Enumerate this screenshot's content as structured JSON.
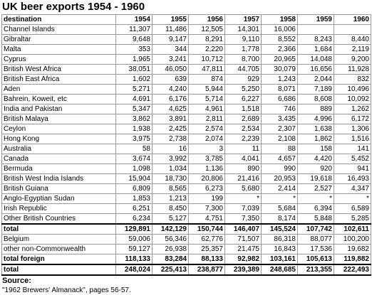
{
  "title": "UK beer exports 1954 - 1960",
  "headers": [
    "destination",
    "1954",
    "1955",
    "1956",
    "1957",
    "1958",
    "1959",
    "1960"
  ],
  "rows": [
    {
      "label": "Channel Islands",
      "values": [
        "11,307",
        "11,486",
        "12,505",
        "14,301",
        "16,006",
        "",
        ""
      ]
    },
    {
      "label": "Gibraltar",
      "values": [
        "9,648",
        "9,147",
        "8,291",
        "9,110",
        "8,552",
        "8,243",
        "8,440"
      ]
    },
    {
      "label": "Malta",
      "values": [
        "353",
        "344",
        "2,220",
        "1,778",
        "2,366",
        "1,684",
        "2,119"
      ]
    },
    {
      "label": "Cyprus",
      "values": [
        "1,965",
        "3,241",
        "10,712",
        "8,700",
        "20,965",
        "14,048",
        "9,200"
      ]
    },
    {
      "label": "British West Africa",
      "values": [
        "38,051",
        "46,050",
        "47,811",
        "44,705",
        "30,079",
        "16,656",
        "11,928"
      ]
    },
    {
      "label": "British East Africa",
      "values": [
        "1,602",
        "639",
        "874",
        "929",
        "1,243",
        "2,044",
        "832"
      ]
    },
    {
      "label": "Aden",
      "values": [
        "5,271",
        "4,240",
        "5,944",
        "5,250",
        "8,071",
        "7,189",
        "10,496"
      ]
    },
    {
      "label": "Bahrein, Koweit, etc",
      "values": [
        "4,691",
        "6,176",
        "5,714",
        "6,227",
        "6,686",
        "8,608",
        "10,092"
      ]
    },
    {
      "label": "India and Pakistan",
      "values": [
        "5,347",
        "4,625",
        "4,961",
        "1,518",
        "746",
        "889",
        "1,262"
      ]
    },
    {
      "label": "British Malaya",
      "values": [
        "3,862",
        "3,891",
        "2,811",
        "2,689",
        "3,435",
        "4,996",
        "6,172"
      ]
    },
    {
      "label": "Ceylon",
      "values": [
        "1,938",
        "2,425",
        "2,574",
        "2,534",
        "2,307",
        "1,638",
        "1,306"
      ]
    },
    {
      "label": "Hong Kong",
      "values": [
        "3,975",
        "2,738",
        "2,074",
        "2,239",
        "2,108",
        "1,862",
        "1,516"
      ]
    },
    {
      "label": "Australia",
      "values": [
        "58",
        "16",
        "3",
        "11",
        "88",
        "158",
        "141"
      ]
    },
    {
      "label": "Canada",
      "values": [
        "3,674",
        "3,992",
        "3,785",
        "4,041",
        "4,657",
        "4,420",
        "5,452"
      ]
    },
    {
      "label": "Bermuda",
      "values": [
        "1,098",
        "1,034",
        "1,136",
        "890",
        "990",
        "920",
        "941"
      ]
    },
    {
      "label": "British West India Islands",
      "values": [
        "15,904",
        "18,730",
        "20,806",
        "21,416",
        "20,953",
        "19,618",
        "16,493"
      ]
    },
    {
      "label": "British Guiana",
      "values": [
        "6,809",
        "8,565",
        "6,273",
        "5,680",
        "2,414",
        "2,527",
        "4,347"
      ]
    },
    {
      "label": "Anglo-Egyptian Sudan",
      "values": [
        "1,853",
        "1,213",
        "199",
        "*",
        "*",
        "*",
        "*"
      ]
    },
    {
      "label": "Irish Republic",
      "values": [
        "6,251",
        "8,450",
        "7,300",
        "7,039",
        "5,684",
        "6,394",
        "6,589"
      ]
    },
    {
      "label": "Other British Countries",
      "values": [
        "6,234",
        "5,127",
        "4,751",
        "7,350",
        "8,174",
        "5,848",
        "5,285"
      ]
    }
  ],
  "total_commonwealth": {
    "label": "total",
    "values": [
      "129,891",
      "142,129",
      "150,744",
      "146,407",
      "145,524",
      "107,742",
      "102,611"
    ]
  },
  "rows_foreign": [
    {
      "label": "Belgium",
      "values": [
        "59,006",
        "56,346",
        "62,776",
        "71,507",
        "86,318",
        "88,077",
        "100,200"
      ]
    },
    {
      "label": "other non-Commonwealth",
      "values": [
        "59,127",
        "26,938",
        "25,357",
        "21,475",
        "16,843",
        "17,536",
        "19,682"
      ]
    }
  ],
  "total_foreign": {
    "label": "total foreign",
    "values": [
      "118,133",
      "83,284",
      "88,133",
      "92,982",
      "103,161",
      "105,613",
      "119,882"
    ]
  },
  "grand_total": {
    "label": "total",
    "values": [
      "248,024",
      "225,413",
      "238,877",
      "239,389",
      "248,685",
      "213,355",
      "222,493"
    ]
  },
  "source": {
    "heading": "Source:",
    "text": "\"1962 Brewers' Almanack\", pages 56-57."
  }
}
